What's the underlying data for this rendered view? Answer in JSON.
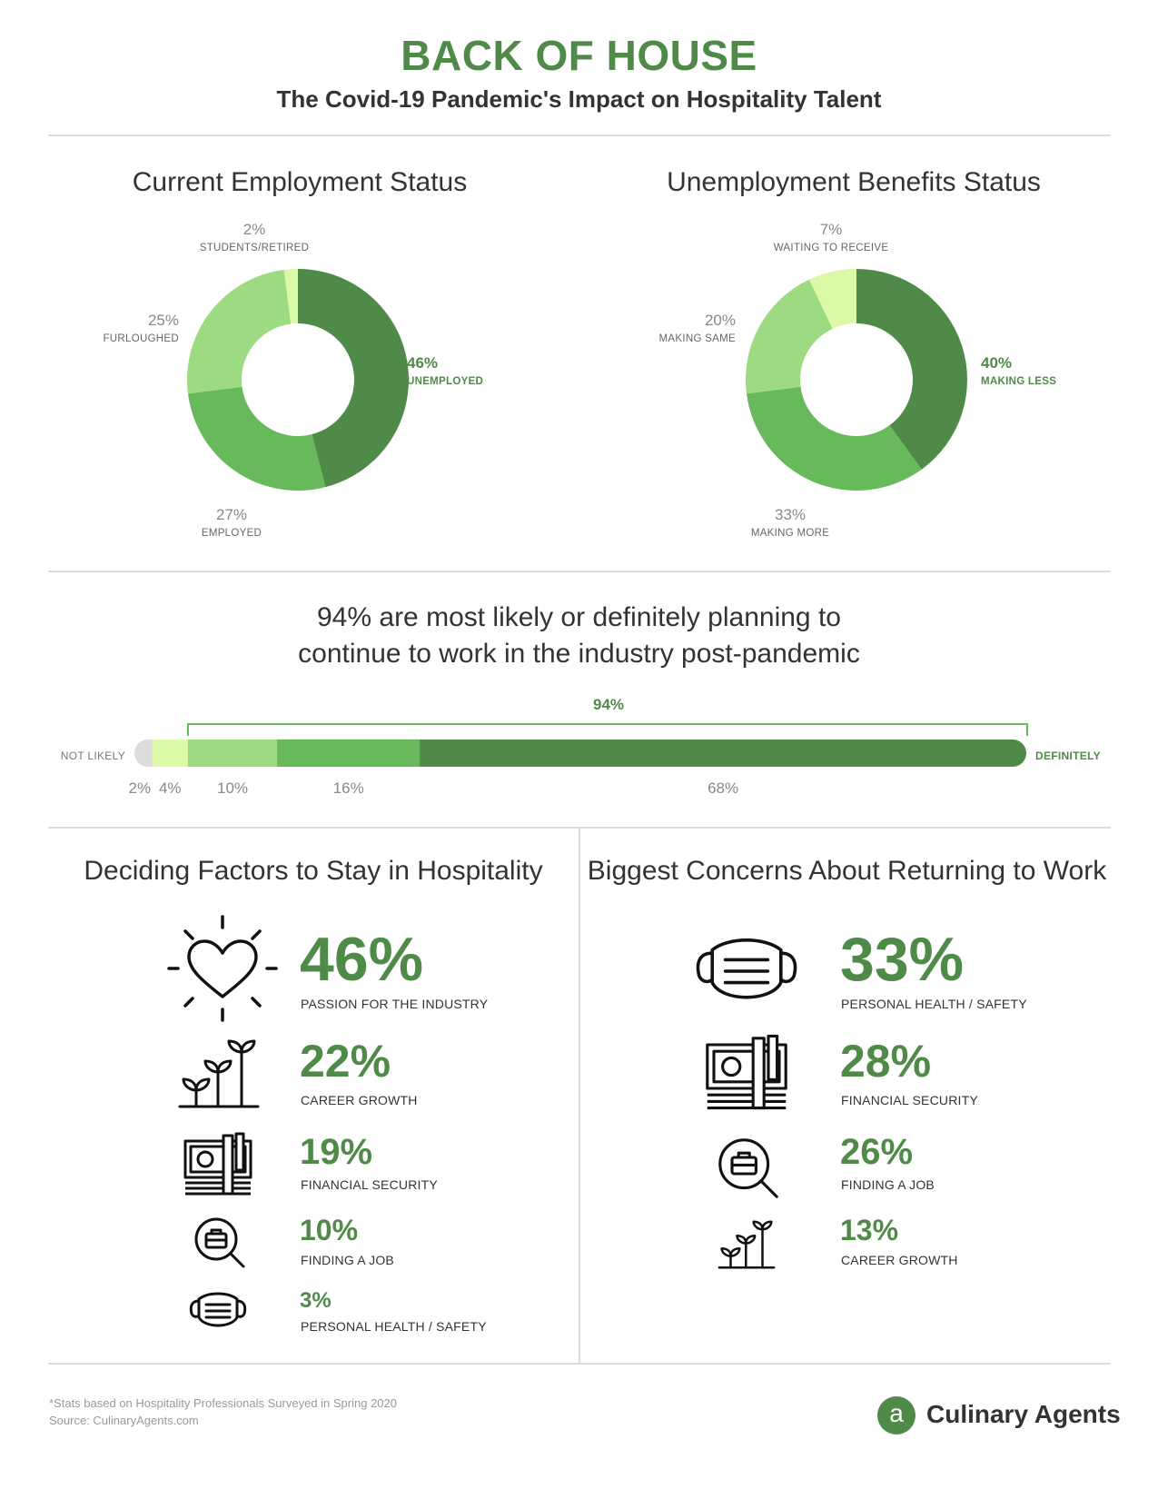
{
  "header": {
    "title": "BACK OF HOUSE",
    "subtitle": "The Covid-19 Pandemic's Impact on Hospitality Talent"
  },
  "employment": {
    "title": "Current Employment Status",
    "slices": [
      {
        "pct": "46%",
        "label": "UNEMPLOYED",
        "value": 46,
        "color": "#4f8a48"
      },
      {
        "pct": "27%",
        "label": "EMPLOYED",
        "value": 27,
        "color": "#68b95c"
      },
      {
        "pct": "25%",
        "label": "FURLOUGHED",
        "value": 25,
        "color": "#9ddb82"
      },
      {
        "pct": "2%",
        "label": "STUDENTS/RETIRED",
        "value": 2,
        "color": "#dcf9a8"
      }
    ]
  },
  "benefits": {
    "title": "Unemployment Benefits Status",
    "slices": [
      {
        "pct": "40%",
        "label": "MAKING LESS",
        "value": 40,
        "color": "#4f8a48"
      },
      {
        "pct": "33%",
        "label": "MAKING MORE",
        "value": 33,
        "color": "#68b95c"
      },
      {
        "pct": "20%",
        "label": "MAKING SAME",
        "value": 20,
        "color": "#9ddb82"
      },
      {
        "pct": "7%",
        "label": "WAITING TO RECEIVE",
        "value": 7,
        "color": "#dcf9a8"
      }
    ]
  },
  "likelihood": {
    "headline_line1": "94% are most likely or definitely planning to",
    "headline_line2": "continue to work in the industry post-pandemic",
    "bracket_label": "94%",
    "left_label": "NOT LIKELY",
    "right_label": "DEFINITELY",
    "segments": [
      {
        "pct": "2%",
        "value": 2,
        "color": "#dcdcdc"
      },
      {
        "pct": "4%",
        "value": 4,
        "color": "#dcf9a8"
      },
      {
        "pct": "10%",
        "value": 10,
        "color": "#9ddb82"
      },
      {
        "pct": "16%",
        "value": 16,
        "color": "#68b95c"
      },
      {
        "pct": "68%",
        "value": 68,
        "color": "#4f8a48"
      }
    ]
  },
  "factors": {
    "title": "Deciding Factors to Stay in Hospitality",
    "items": [
      {
        "pct": "46%",
        "label": "PASSION FOR THE INDUSTRY",
        "icon": "heart-icon"
      },
      {
        "pct": "22%",
        "label": "CAREER GROWTH",
        "icon": "sprout-icon"
      },
      {
        "pct": "19%",
        "label": "FINANCIAL SECURITY",
        "icon": "money-icon"
      },
      {
        "pct": "10%",
        "label": "FINDING A JOB",
        "icon": "job-search-icon"
      },
      {
        "pct": "3%",
        "label": "PERSONAL HEALTH / SAFETY",
        "icon": "mask-icon"
      }
    ]
  },
  "concerns": {
    "title": "Biggest Concerns About Returning to Work",
    "items": [
      {
        "pct": "33%",
        "label": "PERSONAL HEALTH / SAFETY",
        "icon": "mask-icon"
      },
      {
        "pct": "28%",
        "label": "FINANCIAL SECURITY",
        "icon": "money-icon"
      },
      {
        "pct": "26%",
        "label": "FINDING A JOB",
        "icon": "job-search-icon"
      },
      {
        "pct": "13%",
        "label": "CAREER GROWTH",
        "icon": "sprout-icon"
      }
    ]
  },
  "footer": {
    "note": "*Stats based on Hospitality Professionals Surveyed in Spring 2020",
    "source": "Source: CulinaryAgents.com",
    "brand_letter": "a",
    "brand_name": "Culinary Agents",
    "brand_color": "#4f8a48"
  },
  "chart_data": [
    {
      "type": "pie",
      "title": "Current Employment Status",
      "categories": [
        "UNEMPLOYED",
        "EMPLOYED",
        "FURLOUGHED",
        "STUDENTS/RETIRED"
      ],
      "values": [
        46,
        27,
        25,
        2
      ]
    },
    {
      "type": "pie",
      "title": "Unemployment Benefits Status",
      "categories": [
        "MAKING LESS",
        "MAKING MORE",
        "MAKING SAME",
        "WAITING TO RECEIVE"
      ],
      "values": [
        40,
        33,
        20,
        7
      ]
    },
    {
      "type": "bar",
      "title": "94% are most likely or definitely planning to continue to work in the industry post-pandemic",
      "categories": [
        "NOT LIKELY",
        "",
        "",
        "",
        "DEFINITELY"
      ],
      "values": [
        2,
        4,
        10,
        16,
        68
      ]
    },
    {
      "type": "table",
      "title": "Deciding Factors to Stay in Hospitality",
      "categories": [
        "PASSION FOR THE INDUSTRY",
        "CAREER GROWTH",
        "FINANCIAL SECURITY",
        "FINDING A JOB",
        "PERSONAL HEALTH / SAFETY"
      ],
      "values": [
        46,
        22,
        19,
        10,
        3
      ]
    },
    {
      "type": "table",
      "title": "Biggest Concerns About Returning to Work",
      "categories": [
        "PERSONAL HEALTH / SAFETY",
        "FINANCIAL SECURITY",
        "FINDING A JOB",
        "CAREER GROWTH"
      ],
      "values": [
        33,
        28,
        26,
        13
      ]
    }
  ]
}
